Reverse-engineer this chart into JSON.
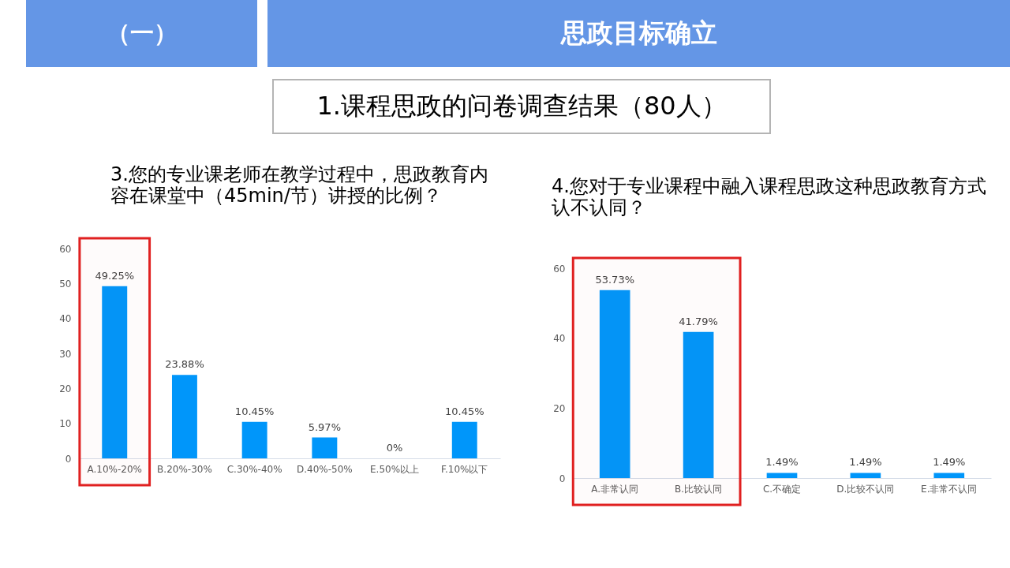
{
  "chart_data": [
    {
      "type": "other",
      "title": "思政目标确立",
      "subtitle": "1.课程思政的问卷调查结果（80人）",
      "annotations": [
        "（一）"
      ]
    },
    {
      "type": "bar",
      "title": "3.您的专业课老师在教学过程中，思政教育内容在课堂中（45min/节）讲授的比例？",
      "categories": [
        "A.10%-20%",
        "B.20%-30%",
        "C.30%-40%",
        "D.40%-50%",
        "E.50%以上",
        "F.10%以下"
      ],
      "values": [
        49.25,
        23.88,
        10.45,
        5.97,
        0,
        10.45
      ],
      "value_labels": [
        "49.25%",
        "23.88%",
        "10.45%",
        "5.97%",
        "0%",
        "10.45%"
      ],
      "color": "#0096fa",
      "ylim": [
        0,
        60
      ],
      "yticks": [
        0,
        10,
        20,
        30,
        40,
        50,
        60
      ],
      "bands": [
        {
          "axis": "x",
          "from": "A.10%-20%",
          "to": "A.10%-20%",
          "color": "#e02020"
        }
      ]
    },
    {
      "type": "bar",
      "title": "4.您对于专业课程中融入课程思政这种思政教育方式认不认同？",
      "categories": [
        "A.非常认同",
        "B.比较认同",
        "C.不确定",
        "D.比较不认同",
        "E.非常不认同"
      ],
      "values": [
        53.73,
        41.79,
        1.49,
        1.49,
        1.49
      ],
      "value_labels": [
        "53.73%",
        "41.79%",
        "1.49%",
        "1.49%",
        "1.49%"
      ],
      "color": "#0096fa",
      "ylim": [
        0,
        60
      ],
      "yticks": [
        0,
        20,
        40,
        60
      ],
      "bands": [
        {
          "axis": "x",
          "from": "A.非常认同",
          "to": "B.比较认同",
          "color": "#e02020"
        }
      ]
    }
  ]
}
